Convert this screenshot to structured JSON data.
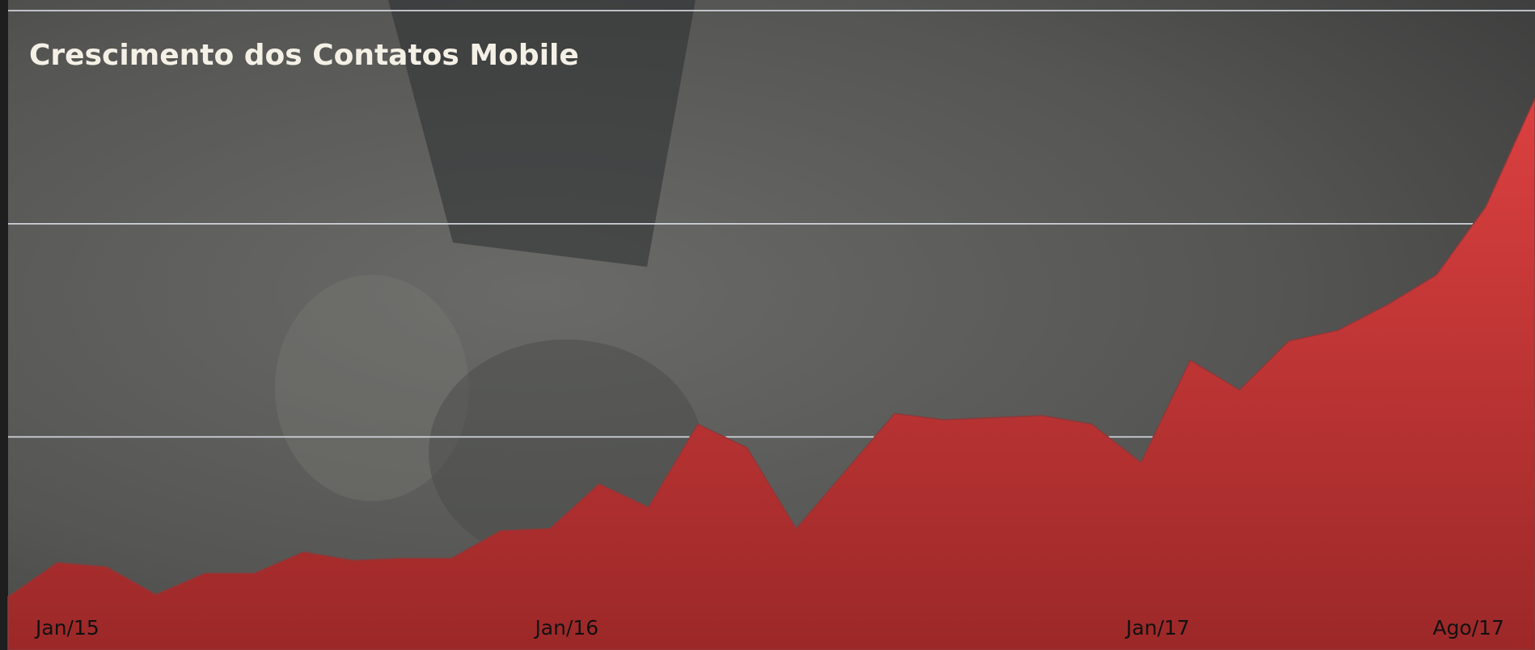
{
  "chart_data": {
    "type": "area",
    "title": "Crescimento dos Contatos Mobile",
    "categories": [
      "Jan/15",
      null,
      null,
      null,
      null,
      null,
      null,
      null,
      null,
      null,
      null,
      null,
      "Jan/16",
      null,
      null,
      null,
      null,
      null,
      null,
      null,
      null,
      null,
      null,
      null,
      "Jan/17",
      null,
      null,
      null,
      null,
      null,
      null,
      "Ago/17"
    ],
    "series": [
      {
        "name": null,
        "color": "#c83434",
        "values": [
          25,
          41,
          39,
          26,
          36,
          36,
          46,
          42,
          43,
          43,
          56,
          57,
          78,
          67,
          106,
          95,
          57,
          84,
          111,
          108,
          109,
          110,
          106,
          88,
          136,
          122,
          145,
          150,
          162,
          176,
          208,
          259
        ]
      }
    ],
    "ylim": [
      0,
      305
    ],
    "yticks": [
      100,
      200,
      300
    ],
    "grid": true
  }
}
